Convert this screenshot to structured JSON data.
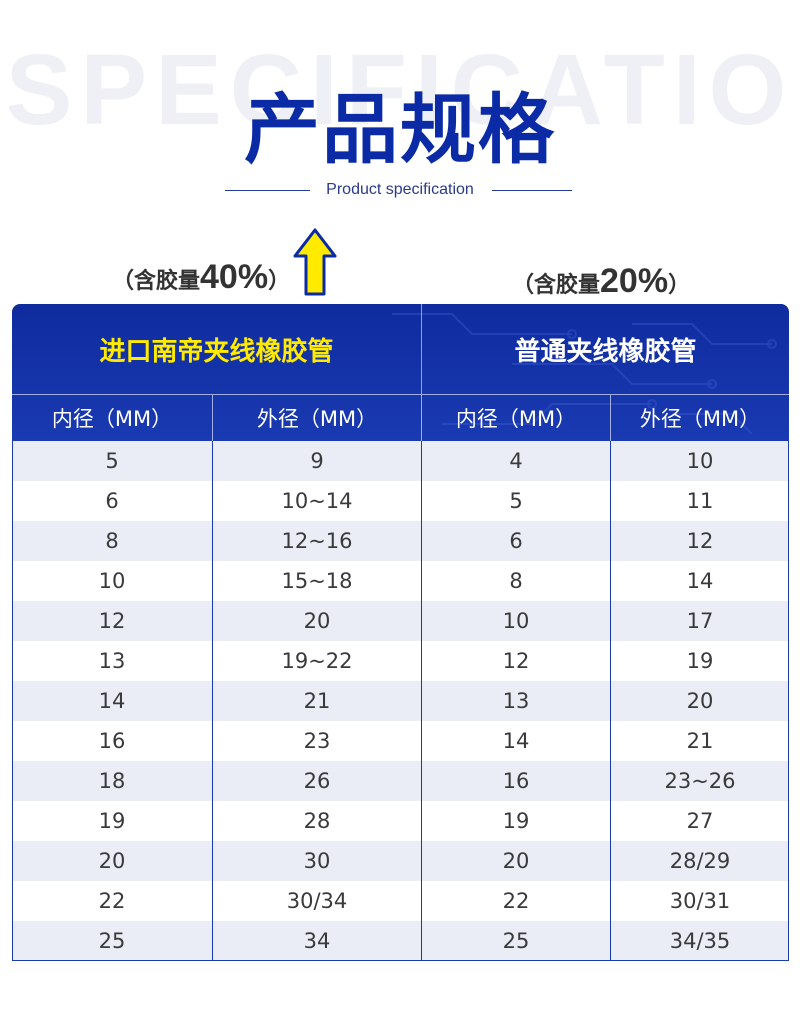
{
  "header": {
    "background_word": "SPECIFICATIO",
    "title": "产品规格",
    "subtitle": "Product specification"
  },
  "labels": {
    "left": {
      "prefix": "（含胶量",
      "percent": "40%",
      "suffix": "）"
    },
    "right": {
      "prefix": "（含胶量",
      "percent": "20%",
      "suffix": "）"
    },
    "arrow_icon": "up-arrow-icon"
  },
  "table": {
    "groups": [
      "进口南帝夹线橡胶管",
      "普通夹线橡胶管"
    ],
    "columns": [
      "内径（MM）",
      "外径（MM）",
      "内径（MM）",
      "外径（MM）"
    ],
    "rows": [
      [
        "5",
        "9",
        "4",
        "10"
      ],
      [
        "6",
        "10~14",
        "5",
        "11"
      ],
      [
        "8",
        "12~16",
        "6",
        "12"
      ],
      [
        "10",
        "15~18",
        "8",
        "14"
      ],
      [
        "12",
        "20",
        "10",
        "17"
      ],
      [
        "13",
        "19~22",
        "12",
        "19"
      ],
      [
        "14",
        "21",
        "13",
        "20"
      ],
      [
        "16",
        "23",
        "14",
        "21"
      ],
      [
        "18",
        "26",
        "16",
        "23~26"
      ],
      [
        "19",
        "28",
        "19",
        "27"
      ],
      [
        "20",
        "30",
        "20",
        "28/29"
      ],
      [
        "22",
        "30/34",
        "22",
        "30/31"
      ],
      [
        "25",
        "34",
        "25",
        "34/35"
      ]
    ]
  },
  "colors": {
    "brand_blue": "#0a2aa6",
    "header_band": "#1a3ab2",
    "highlight_yellow": "#ffea00",
    "row_stripe": "#eaecf6"
  }
}
